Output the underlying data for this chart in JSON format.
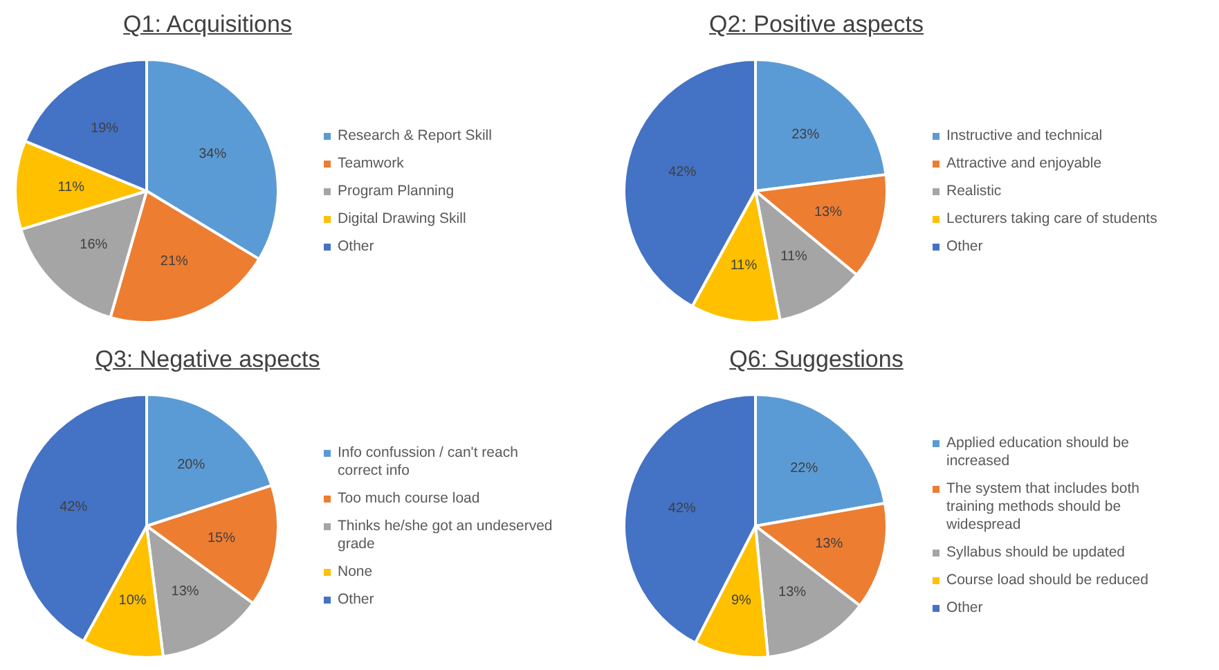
{
  "chart_data": [
    {
      "type": "pie",
      "title": "Q1: Acquisitions",
      "categories": [
        "Research & Report Skill",
        "Teamwork",
        "Program Planning",
        "Digital Drawing Skill",
        "Other"
      ],
      "values": [
        34,
        21,
        16,
        11,
        19
      ],
      "value_labels": [
        "34%",
        "21%",
        "16%",
        "11%",
        "19%"
      ],
      "colors": [
        "#5b9bd5",
        "#ed7d31",
        "#a5a5a5",
        "#ffc000",
        "#4472c4"
      ],
      "legend": "right"
    },
    {
      "type": "pie",
      "title": "Q2: Positive aspects",
      "categories": [
        "Instructive and technical",
        "Attractive and enjoyable",
        "Realistic",
        "Lecturers taking care of students",
        "Other"
      ],
      "values": [
        23,
        13,
        11,
        11,
        42
      ],
      "value_labels": [
        "23%",
        "13%",
        "11%",
        "11%",
        "42%"
      ],
      "colors": [
        "#5b9bd5",
        "#ed7d31",
        "#a5a5a5",
        "#ffc000",
        "#4472c4"
      ],
      "legend": "right"
    },
    {
      "type": "pie",
      "title": "Q3: Negative aspects",
      "categories": [
        "Info confussion / can't reach correct info",
        "Too much course load",
        "Thinks he/she got an undeserved grade",
        "None",
        "Other"
      ],
      "values": [
        20,
        15,
        13,
        10,
        42
      ],
      "value_labels": [
        "20%",
        "15%",
        "13%",
        "10%",
        "42%"
      ],
      "colors": [
        "#5b9bd5",
        "#ed7d31",
        "#a5a5a5",
        "#ffc000",
        "#4472c4"
      ],
      "legend": "right"
    },
    {
      "type": "pie",
      "title": "Q6: Suggestions",
      "categories": [
        "Applied education should be increased",
        "The system that includes both training methods should be widespread",
        "Syllabus should be updated",
        "Course load should be reduced",
        "Other"
      ],
      "values": [
        22,
        13,
        13,
        9,
        42
      ],
      "value_labels": [
        "22%",
        "13%",
        "13%",
        "9%",
        "42%"
      ],
      "colors": [
        "#5b9bd5",
        "#ed7d31",
        "#a5a5a5",
        "#ffc000",
        "#4472c4"
      ],
      "legend": "right"
    }
  ]
}
